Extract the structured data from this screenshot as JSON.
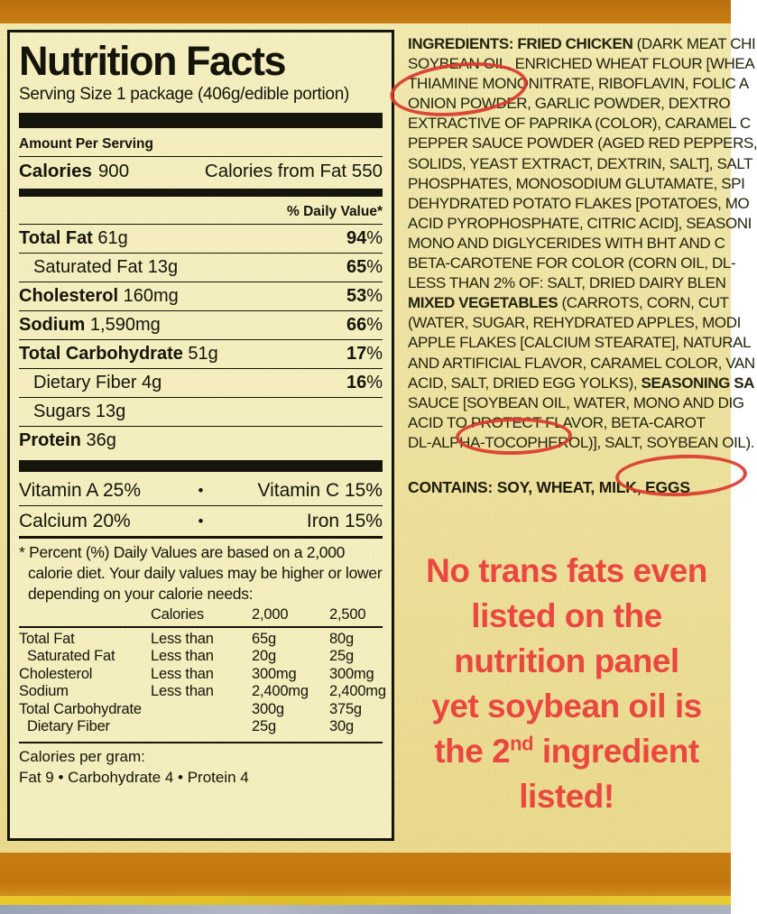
{
  "panel": {
    "title": "Nutrition Facts",
    "serving_size": "Serving Size 1 package (406g/edible portion)",
    "amount_per_serving": "Amount Per Serving",
    "calories_label": "Calories",
    "calories_value": "900",
    "calories_from_fat": "Calories from Fat 550",
    "daily_value_header": "% Daily Value*",
    "percent_sign": "%",
    "bullet": "•",
    "rows": [
      {
        "name": "Total Fat",
        "amount": "61g",
        "dv": "94",
        "cls": "main"
      },
      {
        "name": "Saturated Fat",
        "amount": "13g",
        "dv": "65",
        "cls": "sub"
      },
      {
        "name": "Cholesterol",
        "amount": "160mg",
        "dv": "53",
        "cls": "main"
      },
      {
        "name": "Sodium",
        "amount": "1,590mg",
        "dv": "66",
        "cls": "main"
      },
      {
        "name": "Total Carbohydrate",
        "amount": "51g",
        "dv": "17",
        "cls": "main"
      },
      {
        "name": "Dietary Fiber",
        "amount": "4g",
        "dv": "16",
        "cls": "sub"
      },
      {
        "name": "Sugars",
        "amount": "13g",
        "dv": "",
        "cls": "sub"
      },
      {
        "name": "Protein",
        "amount": "36g",
        "dv": "",
        "cls": "main"
      }
    ],
    "vitamins": [
      {
        "left": "Vitamin A 25%",
        "right": "Vitamin C 15%"
      },
      {
        "left": "Calcium 20%",
        "right": "Iron 15%"
      }
    ],
    "footnote": "* Percent (%) Daily Values are based on a 2,000 calorie diet. Your daily values may be higher or lower depending on your calorie needs:",
    "table": {
      "header": {
        "c2": "Calories",
        "c3": "2,000",
        "c4": "2,500"
      },
      "rows": [
        {
          "c1": "Total Fat",
          "c2": "Less than",
          "c3": "65g",
          "c4": "80g",
          "indent": false
        },
        {
          "c1": "Saturated Fat",
          "c2": "Less than",
          "c3": "20g",
          "c4": "25g",
          "indent": true
        },
        {
          "c1": "Cholesterol",
          "c2": "Less than",
          "c3": "300mg",
          "c4": "300mg",
          "indent": false
        },
        {
          "c1": "Sodium",
          "c2": "Less than",
          "c3": "2,400mg",
          "c4": "2,400mg",
          "indent": false
        },
        {
          "c1": "Total Carbohydrate",
          "c2": "",
          "c3": "300g",
          "c4": "375g",
          "indent": false
        },
        {
          "c1": "Dietary Fiber",
          "c2": "",
          "c3": "25g",
          "c4": "30g",
          "indent": true
        }
      ]
    },
    "calories_per_gram_label": "Calories per gram:",
    "calories_per_gram_values": "Fat 9  •  Carbohydrate 4  •  Protein 4"
  },
  "ingredients": {
    "lines": [
      [
        {
          "t": "INGREDIENTS: FRIED CHICKEN ",
          "b": true
        },
        {
          "t": "(DARK MEAT CHI"
        }
      ],
      [
        {
          "t": "SOYBEAN OIL, ENRICHED WHEAT FLOUR [WHEA"
        }
      ],
      [
        {
          "t": "THIAMINE MONONITRATE, RIBOFLAVIN, FOLIC A"
        }
      ],
      [
        {
          "t": "ONION POWDER,  GARLIC POWDER,  DEXTRO"
        }
      ],
      [
        {
          "t": "EXTRACTIVE OF PAPRIKA (COLOR), CARAMEL C"
        }
      ],
      [
        {
          "t": "PEPPER SAUCE POWDER (AGED RED PEPPERS,"
        }
      ],
      [
        {
          "t": "SOLIDS, YEAST EXTRACT, DEXTRIN, SALT], SALT"
        }
      ],
      [
        {
          "t": "PHOSPHATES, MONOSODIUM GLUTAMATE, SPI"
        }
      ],
      [
        {
          "t": "DEHYDRATED POTATO FLAKES [POTATOES, MO"
        }
      ],
      [
        {
          "t": "ACID PYROPHOSPHATE, CITRIC ACID], SEASONI"
        }
      ],
      [
        {
          "t": "MONO AND DIGLYCERIDES WITH BHT AND C"
        }
      ],
      [
        {
          "t": "BETA-CAROTENE FOR COLOR (CORN OIL, DL-"
        }
      ],
      [
        {
          "t": "LESS THAN 2% OF: SALT, DRIED DAIRY BLEN"
        }
      ],
      [
        {
          "t": "MIXED VEGETABLES ",
          "b": true
        },
        {
          "t": "(CARROTS, CORN, CUT"
        }
      ],
      [
        {
          "t": "(WATER, SUGAR, REHYDRATED APPLES, MODI"
        }
      ],
      [
        {
          "t": "APPLE FLAKES [CALCIUM STEARATE], NATURAL"
        }
      ],
      [
        {
          "t": "AND ARTIFICIAL FLAVOR, CARAMEL COLOR, VAN"
        }
      ],
      [
        {
          "t": "ACID, SALT, DRIED EGG YOLKS), "
        },
        {
          "t": "SEASONING SA",
          "b": true
        }
      ],
      [
        {
          "t": "SAUCE [SOYBEAN OIL, WATER, MONO AND DIG"
        }
      ],
      [
        {
          "t": "ACID  TO  PROTECT  FLAVOR,  BETA-CAROT"
        }
      ],
      [
        {
          "t": "DL-ALPHA-TOCOPHEROL)], SALT, SOYBEAN OIL)."
        }
      ]
    ],
    "contains": "CONTAINS: SOY, WHEAT, MILK, EGGS"
  },
  "annotation": {
    "line1": "No trans fats even",
    "line2": "listed on the",
    "line3": "nutrition panel",
    "line4": "yet soybean oil is",
    "line5_pre": "the 2",
    "line5_sup": "nd",
    "line5_post": " ingredient",
    "line6": "listed!"
  },
  "colors": {
    "label_background": "#f4eebe",
    "package_background": "#ecdf9b",
    "package_edge_orange": "#c87c10",
    "marker_red": "#da392e",
    "annotation_red": "#e94740",
    "label_ink": "#15150d"
  }
}
